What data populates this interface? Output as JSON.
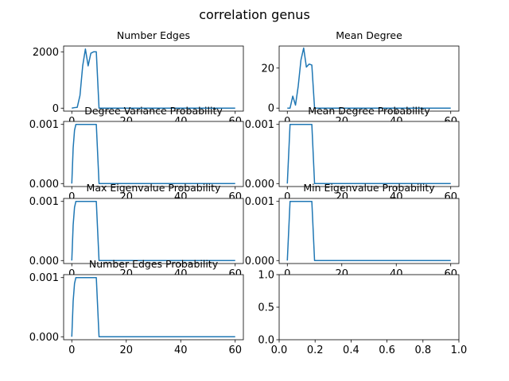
{
  "figure": {
    "title": "correlation  genus"
  },
  "chart_data": [
    {
      "type": "line",
      "title": "Number Edges",
      "xlim": [
        -3,
        63
      ],
      "ylim": [
        -105,
        2205
      ],
      "xticks": [
        0,
        20,
        40,
        60
      ],
      "yticks": [
        0,
        2000
      ],
      "ytick_labels": [
        "0",
        "2000"
      ],
      "series": [
        {
          "x": [
            0,
            1,
            2,
            3,
            4,
            5,
            6,
            7,
            8,
            9,
            10,
            20,
            30,
            40,
            50,
            60
          ],
          "y": [
            0,
            20,
            30,
            450,
            1500,
            2100,
            1500,
            1950,
            2000,
            2000,
            0,
            0,
            0,
            0,
            0,
            0
          ]
        }
      ]
    },
    {
      "type": "line",
      "title": "Mean Degree",
      "xlim": [
        -3,
        63
      ],
      "ylim": [
        -1.5,
        31
      ],
      "xticks": [
        0,
        20,
        40,
        60
      ],
      "yticks": [
        0,
        20
      ],
      "ytick_labels": [
        "0",
        "20"
      ],
      "series": [
        {
          "x": [
            0,
            1,
            2,
            3,
            4,
            5,
            6,
            7,
            8,
            9,
            10,
            20,
            30,
            40,
            50,
            60
          ],
          "y": [
            0,
            0,
            6,
            1.5,
            11,
            24,
            30,
            20.5,
            22,
            21.5,
            0,
            0,
            0,
            0,
            0,
            0
          ]
        }
      ]
    },
    {
      "type": "line",
      "title": "Degree Variance Probability",
      "xlim": [
        -3,
        63
      ],
      "ylim": [
        -5e-05,
        0.00105
      ],
      "xticks": [
        0,
        20,
        40,
        60
      ],
      "yticks": [
        0,
        0.001
      ],
      "ytick_labels": [
        "0.000",
        "0.001"
      ],
      "series": [
        {
          "x": [
            0,
            0.5,
            1,
            1.5,
            9,
            10,
            20,
            40,
            60
          ],
          "y": [
            0,
            0.0006,
            0.0009,
            0.001,
            0.001,
            0,
            0,
            0,
            0
          ]
        }
      ]
    },
    {
      "type": "line",
      "title": "Mean Degree Probability",
      "xlim": [
        -3,
        63
      ],
      "ylim": [
        -5e-05,
        0.00105
      ],
      "xticks": [
        0,
        20,
        40,
        60
      ],
      "yticks": [
        0,
        0.001
      ],
      "ytick_labels": [
        "0.000",
        "0.001"
      ],
      "series": [
        {
          "x": [
            0,
            1,
            9,
            10,
            20,
            40,
            60
          ],
          "y": [
            0,
            0.001,
            0.001,
            0,
            0,
            0,
            0
          ]
        }
      ]
    },
    {
      "type": "line",
      "title": "Max Eigenvalue Probability",
      "xlim": [
        -3,
        63
      ],
      "ylim": [
        -5e-05,
        0.00105
      ],
      "xticks": [
        0,
        20,
        40,
        60
      ],
      "yticks": [
        0,
        0.001
      ],
      "ytick_labels": [
        "0.000",
        "0.001"
      ],
      "series": [
        {
          "x": [
            0,
            0.5,
            1,
            1.5,
            9,
            10,
            20,
            40,
            60
          ],
          "y": [
            0,
            0.0006,
            0.0009,
            0.001,
            0.001,
            0,
            0,
            0,
            0
          ]
        }
      ]
    },
    {
      "type": "line",
      "title": "Min Eigenvalue Probability",
      "xlim": [
        -3,
        63
      ],
      "ylim": [
        -5e-05,
        0.00105
      ],
      "xticks": [
        0,
        20,
        40,
        60
      ],
      "yticks": [
        0,
        0.001
      ],
      "ytick_labels": [
        "0.000",
        "0.001"
      ],
      "series": [
        {
          "x": [
            0,
            1,
            9,
            10,
            20,
            40,
            60
          ],
          "y": [
            0,
            0.001,
            0.001,
            0,
            0,
            0,
            0
          ]
        }
      ]
    },
    {
      "type": "line",
      "title": "Number Edges Probability",
      "xlim": [
        -3,
        63
      ],
      "ylim": [
        -5e-05,
        0.00105
      ],
      "xticks": [
        0,
        20,
        40,
        60
      ],
      "yticks": [
        0,
        0.001
      ],
      "ytick_labels": [
        "0.000",
        "0.001"
      ],
      "series": [
        {
          "x": [
            0,
            0.5,
            1,
            1.5,
            9,
            10,
            20,
            40,
            60
          ],
          "y": [
            0,
            0.0006,
            0.0009,
            0.001,
            0.001,
            0,
            0,
            0,
            0
          ]
        }
      ]
    },
    {
      "type": "line",
      "title": "",
      "xlim": [
        0,
        1
      ],
      "ylim": [
        0,
        1
      ],
      "xticks": [
        0,
        0.2,
        0.4,
        0.6,
        0.8,
        1
      ],
      "xtick_labels": [
        "0.0",
        "0.2",
        "0.4",
        "0.6",
        "0.8",
        "1.0"
      ],
      "yticks": [
        0,
        0.5,
        1
      ],
      "ytick_labels": [
        "0.0",
        "0.5",
        "1.0"
      ],
      "series": []
    }
  ]
}
